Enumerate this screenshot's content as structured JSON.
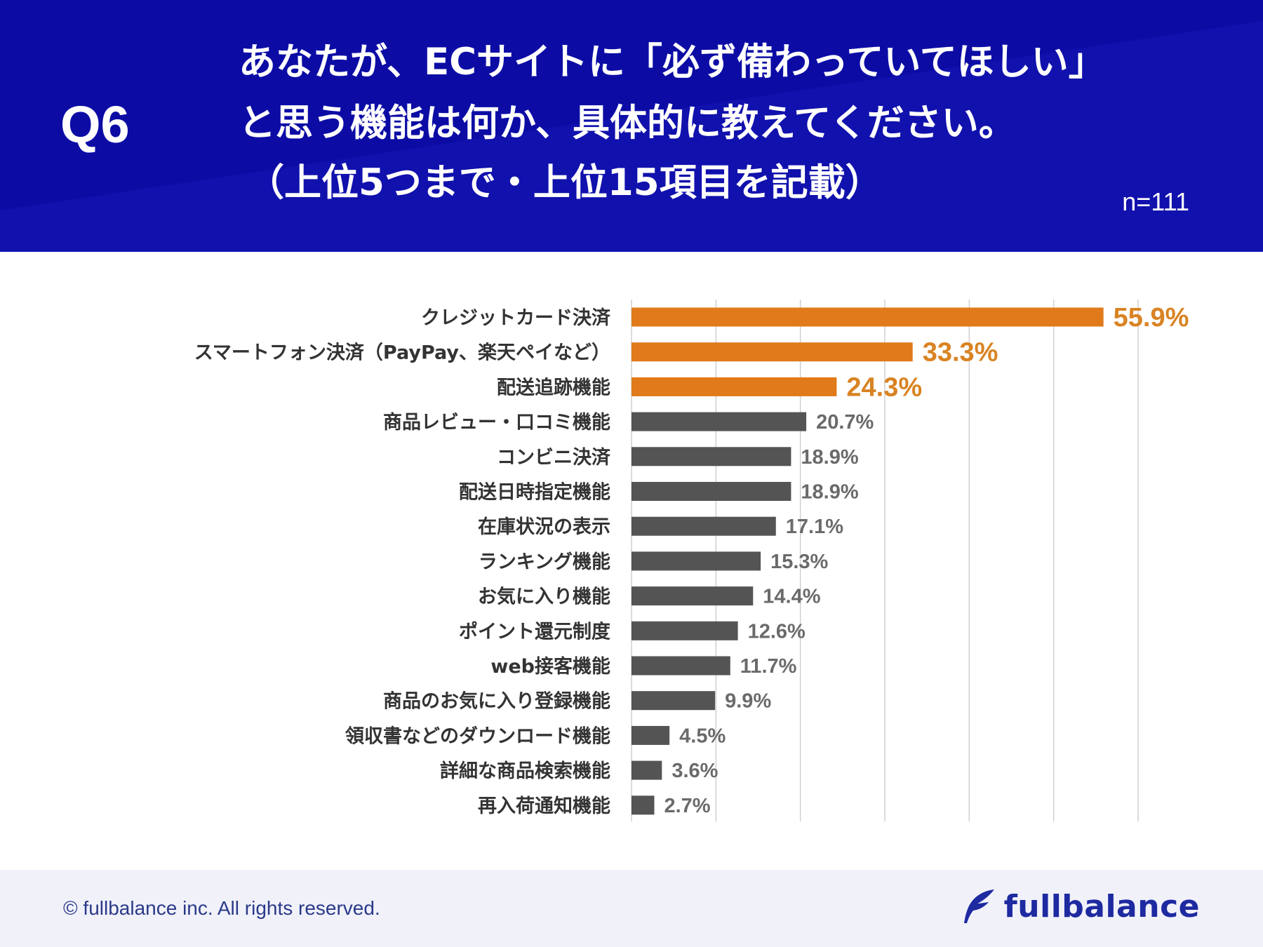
{
  "header": {
    "question_number": "Q6",
    "question_lines": [
      "あなたが、ECサイトに「必ず備わっていてほしい」",
      "と思う機能は何か、具体的に教えてください。",
      "（上位5つまで・上位15項目を記載）"
    ],
    "sample_size": "n=111"
  },
  "colors": {
    "header_bg": "#0c0ca5",
    "highlight_bar": "#e07a1a",
    "normal_bar": "#545454",
    "highlight_label": "#d98323",
    "normal_label": "#6a6a6a",
    "gridline": "#d0d0d0"
  },
  "chart_data": {
    "type": "bar",
    "orientation": "horizontal",
    "title": "",
    "xlim": [
      0,
      60
    ],
    "gridlines": true,
    "highlight_top_n": 3,
    "categories": [
      "クレジットカード決済",
      "スマートフォン決済（PayPay、楽天ペイなど）",
      "配送追跡機能",
      "商品レビュー・口コミ機能",
      "コンビニ決済",
      "配送日時指定機能",
      "在庫状況の表示",
      "ランキング機能",
      "お気に入り機能",
      "ポイント還元制度",
      "web接客機能",
      "商品のお気に入り登録機能",
      "領収書などのダウンロード機能",
      "詳細な商品検索機能",
      "再入荷通知機能"
    ],
    "values": [
      55.9,
      33.3,
      24.3,
      20.7,
      18.9,
      18.9,
      17.1,
      15.3,
      14.4,
      12.6,
      11.7,
      9.9,
      4.5,
      3.6,
      2.7
    ],
    "value_labels": [
      "55.9%",
      "33.3%",
      "24.3%",
      "20.7%",
      "18.9%",
      "18.9%",
      "17.1%",
      "15.3%",
      "14.4%",
      "12.6%",
      "11.7%",
      "9.9%",
      "4.5%",
      "3.6%",
      "2.7%"
    ]
  },
  "footer": {
    "copyright": "© fullbalance inc. All rights reserved.",
    "brand_name": "fullbalance",
    "brand_icon": "feather-icon"
  }
}
